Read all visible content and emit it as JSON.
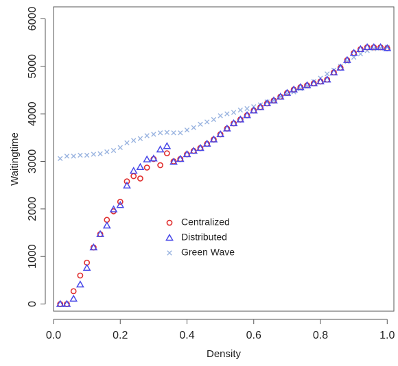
{
  "chart_data": {
    "type": "scatter",
    "xlabel": "Density",
    "ylabel": "Waitingtime",
    "xlim": [
      0,
      1.02
    ],
    "ylim": [
      -150,
      6250
    ],
    "x_ticks": [
      0.0,
      0.2,
      0.4,
      0.6,
      0.8,
      1.0
    ],
    "x_tick_labels": [
      "0.0",
      "0.2",
      "0.4",
      "0.6",
      "0.8",
      "1.0"
    ],
    "y_ticks": [
      0,
      1000,
      2000,
      3000,
      4000,
      5000,
      6000
    ],
    "y_tick_labels": [
      "0",
      "1000",
      "2000",
      "3000",
      "4000",
      "5000",
      "6000"
    ],
    "grid": false,
    "legend_position": "center",
    "x": [
      0.02,
      0.04,
      0.06,
      0.08,
      0.1,
      0.12,
      0.14,
      0.16,
      0.18,
      0.2,
      0.22,
      0.24,
      0.26,
      0.28,
      0.3,
      0.32,
      0.34,
      0.36,
      0.38,
      0.4,
      0.42,
      0.44,
      0.46,
      0.48,
      0.5,
      0.52,
      0.54,
      0.56,
      0.58,
      0.6,
      0.62,
      0.64,
      0.66,
      0.68,
      0.7,
      0.72,
      0.74,
      0.76,
      0.78,
      0.8,
      0.82,
      0.84,
      0.86,
      0.88,
      0.9,
      0.92,
      0.94,
      0.96,
      0.98,
      1.0
    ],
    "series": [
      {
        "name": "Centralized",
        "marker": "circle",
        "color": "#e03030",
        "values": [
          0,
          0,
          270,
          600,
          870,
          1190,
          1470,
          1770,
          1950,
          2150,
          2580,
          2690,
          2640,
          2870,
          3050,
          2920,
          3170,
          3000,
          3050,
          3150,
          3220,
          3280,
          3370,
          3460,
          3570,
          3690,
          3800,
          3880,
          3970,
          4070,
          4140,
          4220,
          4280,
          4360,
          4440,
          4510,
          4560,
          4600,
          4640,
          4680,
          4720,
          4870,
          4970,
          5130,
          5280,
          5360,
          5400,
          5400,
          5400,
          5380
        ]
      },
      {
        "name": "Distributed",
        "marker": "triangle",
        "color": "#4a4ae8",
        "values": [
          0,
          0,
          110,
          410,
          760,
          1190,
          1470,
          1650,
          1990,
          2080,
          2490,
          2800,
          2880,
          3040,
          3060,
          3250,
          3320,
          2990,
          3050,
          3150,
          3220,
          3280,
          3370,
          3460,
          3570,
          3690,
          3800,
          3880,
          3970,
          4070,
          4140,
          4220,
          4280,
          4360,
          4440,
          4510,
          4560,
          4600,
          4640,
          4680,
          4720,
          4870,
          4970,
          5130,
          5280,
          5360,
          5400,
          5400,
          5400,
          5380
        ]
      },
      {
        "name": "Green Wave",
        "marker": "cross",
        "color": "#9ab4e0",
        "values": [
          3060,
          3110,
          3110,
          3130,
          3130,
          3150,
          3160,
          3200,
          3230,
          3290,
          3390,
          3440,
          3480,
          3540,
          3570,
          3600,
          3610,
          3600,
          3600,
          3660,
          3710,
          3780,
          3830,
          3880,
          3960,
          4000,
          4030,
          4080,
          4110,
          4150,
          4190,
          4250,
          4280,
          4360,
          4420,
          4460,
          4530,
          4580,
          4680,
          4750,
          4840,
          4920,
          5000,
          5100,
          5190,
          5260,
          5330,
          5370,
          5380,
          5400
        ]
      }
    ]
  }
}
